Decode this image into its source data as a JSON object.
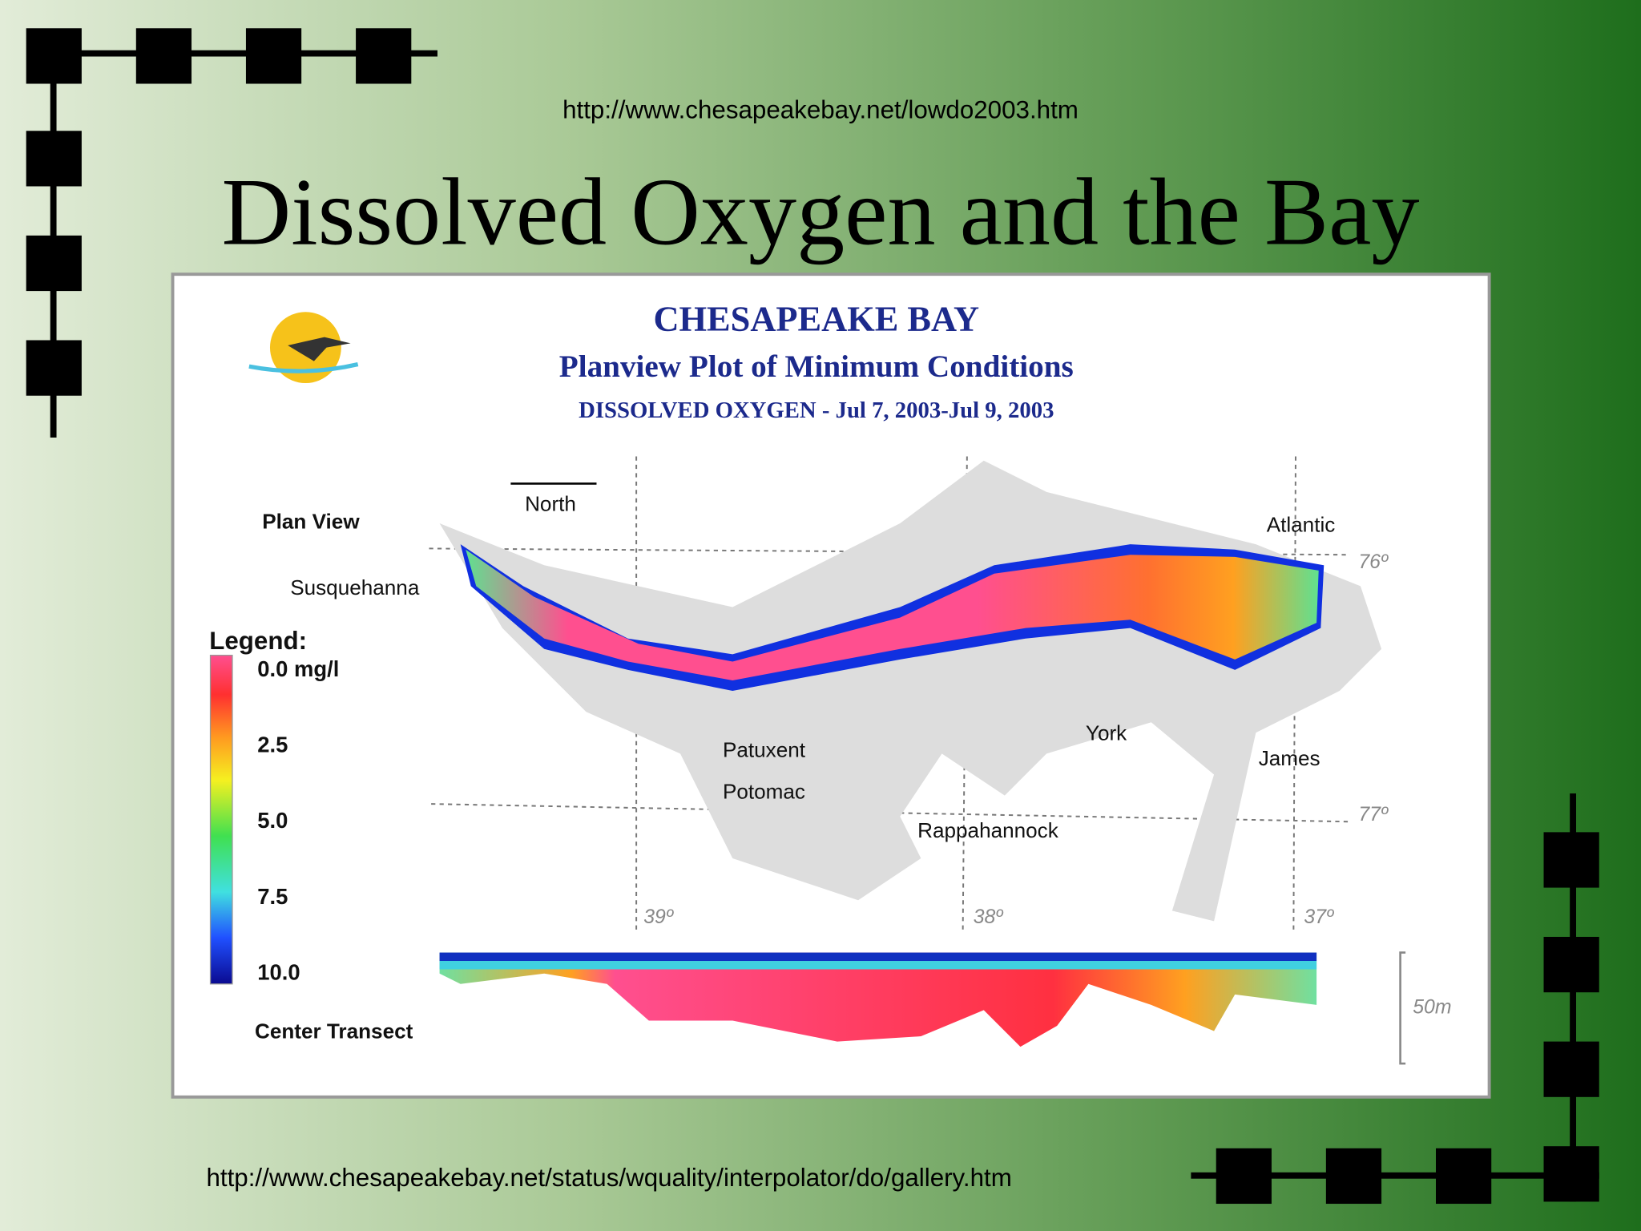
{
  "header": {
    "url": "http://www.chesapeakebay.net/lowdo2003.htm",
    "title": "Dissolved Oxygen and the Bay"
  },
  "figure": {
    "title": "CHESAPEAKE BAY",
    "subtitle": "Planview Plot of Minimum Conditions",
    "parameter": "DISSOLVED OXYGEN - Jul 7, 2003-Jul 9, 2003",
    "north": "North",
    "plan_view": "Plan View",
    "center_transect": "Center Transect",
    "depth_scale": "50m",
    "legend": {
      "title": "Legend:",
      "labels": [
        "0.0 mg/l",
        "2.5",
        "5.0",
        "7.5",
        "10.0"
      ]
    },
    "places": {
      "susquehanna": "Susquehanna",
      "atlantic": "Atlantic",
      "patuxent": "Patuxent",
      "potomac": "Potomac",
      "york": "York",
      "james": "James",
      "rappahannock": "Rappahannock"
    },
    "grid_labels": {
      "lon_76": "76º",
      "lon_77": "77º",
      "lat_39": "39º",
      "lat_38": "38º",
      "lat_37": "37º"
    }
  },
  "footer": {
    "url": "http://www.chesapeakebay.net/status/wquality/interpolator/do/gallery.htm"
  }
}
